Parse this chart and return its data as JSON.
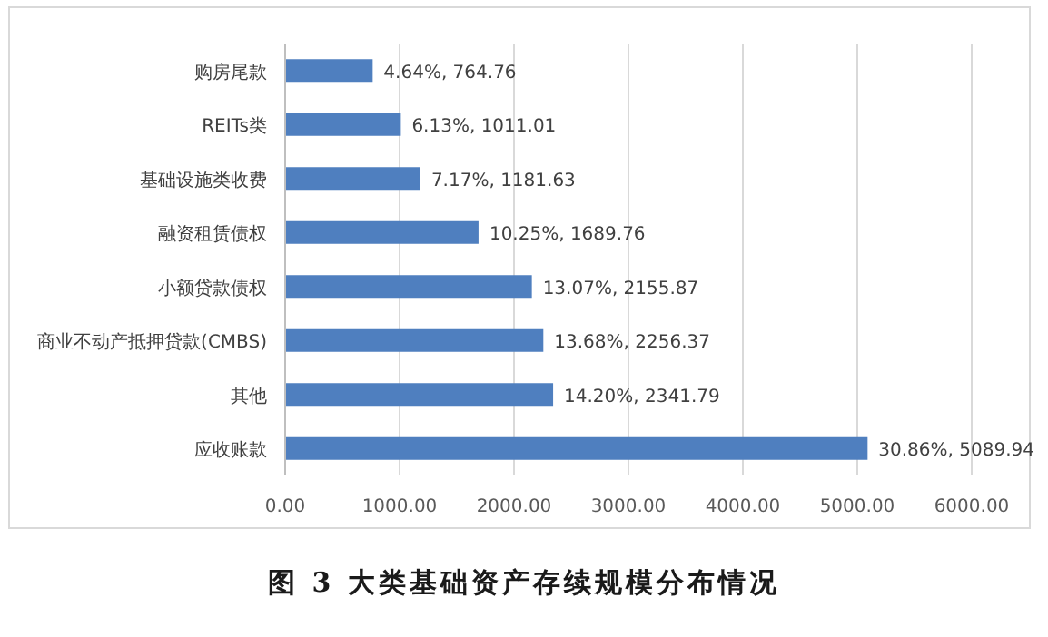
{
  "chart_data": {
    "type": "bar",
    "orientation": "horizontal",
    "title": "图 3 大类基础资产存续规模分布情况",
    "categories": [
      "购房尾款",
      "REITs类",
      "基础设施类收费",
      "融资租赁债权",
      "小额贷款债权",
      "商业不动产抵押贷款(CMBS)",
      "其他",
      "应收账款"
    ],
    "values": [
      764.76,
      1011.01,
      1181.63,
      1689.76,
      2155.87,
      2256.37,
      2341.79,
      5089.94
    ],
    "value_labels": [
      "4.64%, 764.76",
      "6.13%, 1011.01",
      "7.17%, 1181.63",
      "10.25%, 1689.76",
      "13.07%, 2155.87",
      "13.68%, 2256.37",
      "14.20%, 2341.79",
      "30.86%, 5089.94"
    ],
    "color": "#4f7fbf",
    "xlim": [
      0,
      6000
    ],
    "xticks": [
      {
        "value": 0,
        "label": "0.00"
      },
      {
        "value": 1000,
        "label": "1000.00"
      },
      {
        "value": 2000,
        "label": "2000.00"
      },
      {
        "value": 3000,
        "label": "3000.00"
      },
      {
        "value": 4000,
        "label": "4000.00"
      },
      {
        "value": 5000,
        "label": "5000.00"
      },
      {
        "value": 6000,
        "label": "6000.00"
      }
    ],
    "grid": "x"
  }
}
